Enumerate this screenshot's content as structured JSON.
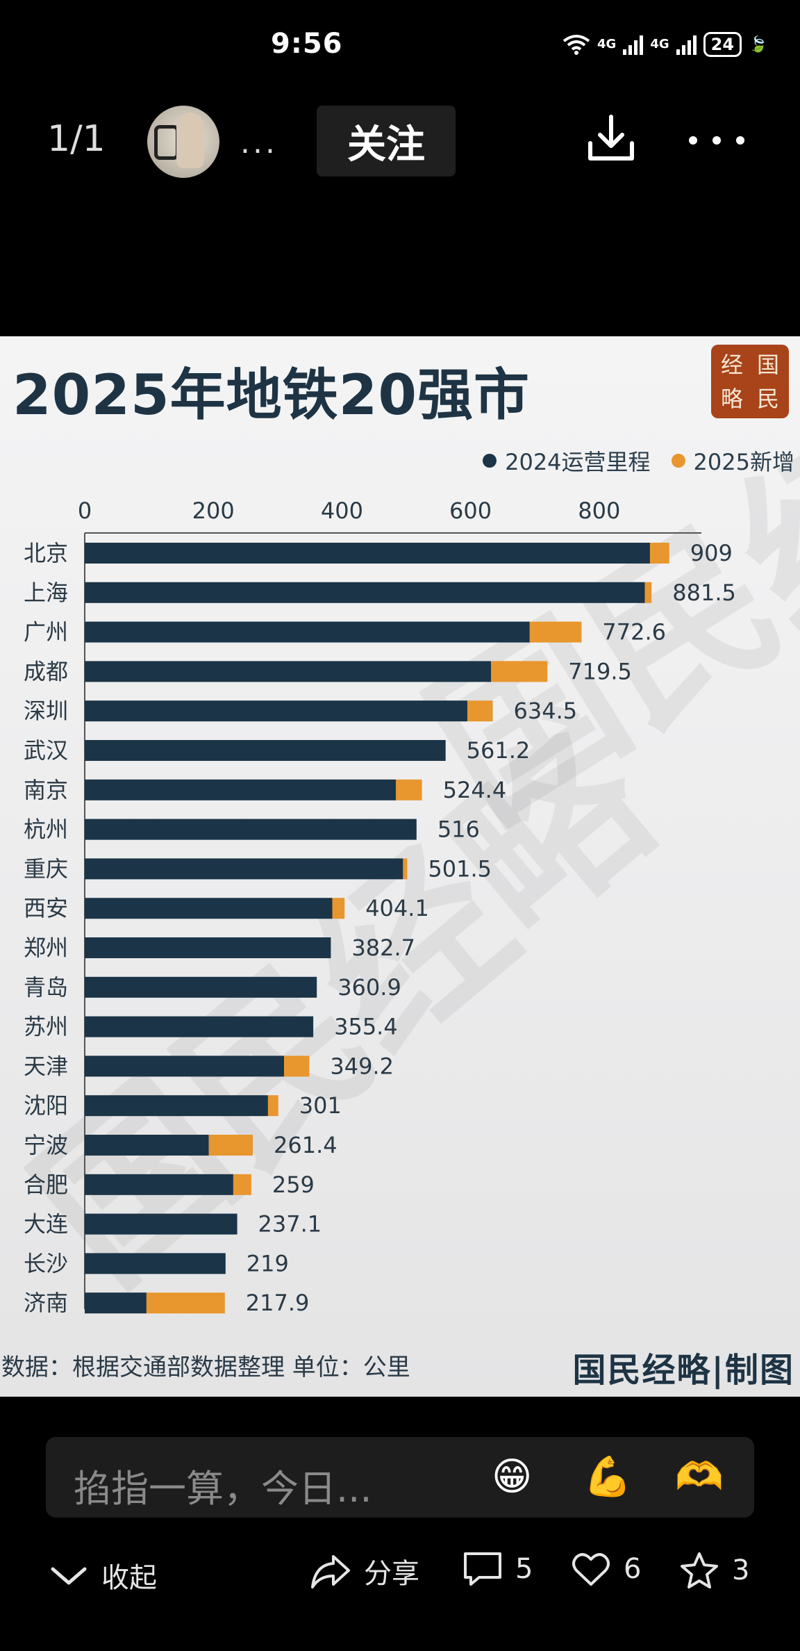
{
  "status_bar": {
    "time": "9:56",
    "network1": "4G",
    "network2": "4G",
    "battery": "24"
  },
  "top_nav": {
    "page_count": "1/1",
    "author_more": "...",
    "follow_label": "关注"
  },
  "post_image": {
    "title": "2025年地铁20强市",
    "seal_chars": [
      "经",
      "国",
      "略",
      "民"
    ],
    "footer_note": "数据：根据交通部数据整理 单位：公里",
    "footer_brand": "国民经略|制图",
    "watermark": "国民经略"
  },
  "chart_data": {
    "type": "bar",
    "orientation": "horizontal",
    "stacked": true,
    "title": "2025年地铁20强市",
    "categories": [
      "北京",
      "上海",
      "广州",
      "成都",
      "深圳",
      "武汉",
      "南京",
      "杭州",
      "重庆",
      "西安",
      "郑州",
      "青岛",
      "苏州",
      "天津",
      "沈阳",
      "宁波",
      "合肥",
      "大连",
      "长沙",
      "济南"
    ],
    "totals": [
      "909",
      "881.5",
      "772.6",
      "719.5",
      "634.5",
      "561.2",
      "524.4",
      "516",
      "501.5",
      "404.1",
      "382.7",
      "360.9",
      "355.4",
      "349.2",
      "301",
      "261.4",
      "259",
      "237.1",
      "219",
      "217.9"
    ],
    "series": [
      {
        "name": "2024运营里程",
        "color": "#1b3447",
        "values": [
          879,
          871,
          692,
          632,
          595,
          561.2,
          484,
          516,
          495,
          385,
          382.7,
          360.9,
          355.4,
          310,
          285,
          193,
          231,
          237.1,
          219,
          96
        ]
      },
      {
        "name": "2025新增",
        "color": "#e8962e",
        "values": [
          30,
          10.5,
          80.6,
          87.5,
          39.5,
          0,
          40.4,
          0,
          6.5,
          19.1,
          0,
          0,
          0,
          39.2,
          16,
          68.4,
          28,
          0,
          0,
          121.9
        ]
      }
    ],
    "x_ticks": [
      "0",
      "200",
      "400",
      "600",
      "800"
    ],
    "xlim": [
      0,
      1000
    ],
    "grid": false,
    "legend_position": "top-right"
  },
  "comment_bar": {
    "placeholder": "掐指一算，今日..."
  },
  "bottom_bar": {
    "collapse_label": "收起",
    "share_label": "分享",
    "comment_count": "5",
    "like_count": "6",
    "star_count": "3"
  }
}
